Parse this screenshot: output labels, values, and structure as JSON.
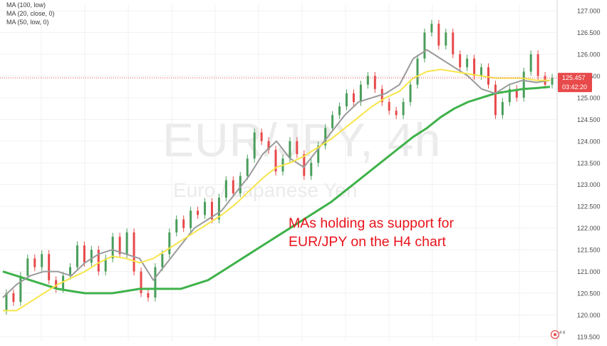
{
  "watermark": {
    "symbol": "EUR/JPY, 4h",
    "description": "Euro / Japanese Yen"
  },
  "indicators": [
    {
      "label": "MA (100, low)"
    },
    {
      "label": "MA (20, close, 0)"
    },
    {
      "label": "MA (50, low, 0)"
    }
  ],
  "annotation": {
    "line1": "MAs holding as support for",
    "line2": "EUR/JPY on the H4 chart"
  },
  "price_label": {
    "value": "125.457",
    "countdown": "03:42:20"
  },
  "corner_icon": {
    "name": "notification-bell-icon"
  },
  "colors": {
    "up_candle": "#e8494a",
    "down_candle": "#4a9e5c",
    "ma20": "#9a9a9a",
    "ma50": "#f7e54a",
    "ma100": "#3fb24a",
    "annotation": "#e8141c",
    "price_badge": "#e8494a"
  },
  "chart_data": {
    "type": "line",
    "yaxis_ticks": [
      "127.000",
      "126.500",
      "126.000",
      "125.500",
      "125.000",
      "124.500",
      "124.000",
      "123.500",
      "123.000",
      "122.500",
      "122.000",
      "121.500",
      "121.000",
      "120.500",
      "120.000",
      "119.500"
    ],
    "ylim": [
      119.4,
      127.15
    ],
    "series": [
      {
        "name": "MA (100, low)",
        "values": [
          121.0,
          120.9,
          120.8,
          120.7,
          120.6,
          120.55,
          120.5,
          120.5,
          120.5,
          120.55,
          120.6,
          120.6,
          120.6,
          120.6,
          120.7,
          120.8,
          121.0,
          121.2,
          121.4,
          121.6,
          121.8,
          122.0,
          122.2,
          122.4,
          122.6,
          122.85,
          123.1,
          123.35,
          123.6,
          123.85,
          124.1,
          124.3,
          124.55,
          124.75,
          124.9,
          125.0,
          125.1,
          125.15,
          125.2,
          125.22,
          125.25
        ]
      },
      {
        "name": "MA (20, close, 0)",
        "values": [
          120.4,
          120.7,
          120.9,
          121.0,
          121.0,
          120.9,
          121.2,
          121.4,
          121.5,
          121.4,
          121.3,
          120.8,
          121.2,
          121.6,
          122.0,
          122.2,
          122.4,
          122.8,
          123.2,
          123.7,
          124.0,
          123.6,
          123.4,
          123.8,
          124.2,
          124.6,
          124.9,
          125.0,
          125.1,
          125.3,
          125.9,
          126.1,
          125.9,
          125.7,
          125.5,
          125.2,
          125.1,
          125.3,
          125.4,
          125.35,
          125.4
        ]
      },
      {
        "name": "MA (50, low, 0)",
        "values": [
          120.1,
          120.1,
          120.3,
          120.5,
          120.7,
          120.85,
          121.0,
          121.2,
          121.35,
          121.3,
          121.2,
          121.3,
          121.5,
          121.7,
          121.9,
          122.1,
          122.3,
          122.55,
          122.85,
          123.15,
          123.4,
          123.5,
          123.65,
          123.85,
          124.05,
          124.3,
          124.55,
          124.8,
          125.0,
          125.15,
          125.45,
          125.6,
          125.65,
          125.6,
          125.55,
          125.5,
          125.45,
          125.45,
          125.45,
          125.4,
          125.4
        ]
      }
    ],
    "candles": [
      [
        120.1,
        120.5
      ],
      [
        120.5,
        120.3
      ],
      [
        120.3,
        120.9
      ],
      [
        120.9,
        121.3
      ],
      [
        121.3,
        121.1
      ],
      [
        121.1,
        121.4
      ],
      [
        121.4,
        120.8
      ],
      [
        120.8,
        120.6
      ],
      [
        120.6,
        120.9
      ],
      [
        120.9,
        121.1
      ],
      [
        121.1,
        121.6
      ],
      [
        121.6,
        121.2
      ],
      [
        121.2,
        121.5
      ],
      [
        121.5,
        121.0
      ],
      [
        121.0,
        121.3
      ],
      [
        121.3,
        121.8
      ],
      [
        121.8,
        121.4
      ],
      [
        121.4,
        121.9
      ],
      [
        121.9,
        121.0
      ],
      [
        121.0,
        120.5
      ],
      [
        120.5,
        120.4
      ],
      [
        120.4,
        121.1
      ],
      [
        121.1,
        121.4
      ],
      [
        121.4,
        121.9
      ],
      [
        121.9,
        122.2
      ],
      [
        122.2,
        122.0
      ],
      [
        122.0,
        122.4
      ],
      [
        122.4,
        122.3
      ],
      [
        122.3,
        122.6
      ],
      [
        122.6,
        122.2
      ],
      [
        122.2,
        122.7
      ],
      [
        122.7,
        123.1
      ],
      [
        123.1,
        122.8
      ],
      [
        122.8,
        123.2
      ],
      [
        123.2,
        123.6
      ],
      [
        123.6,
        124.2
      ],
      [
        124.2,
        124.0
      ],
      [
        124.0,
        123.8
      ],
      [
        123.8,
        123.3
      ],
      [
        123.3,
        123.6
      ],
      [
        123.6,
        124.0
      ],
      [
        124.0,
        123.7
      ],
      [
        123.7,
        123.2
      ],
      [
        123.2,
        123.5
      ],
      [
        123.5,
        123.9
      ],
      [
        123.9,
        124.3
      ],
      [
        124.3,
        124.6
      ],
      [
        124.6,
        124.8
      ],
      [
        124.8,
        125.1
      ],
      [
        125.1,
        124.9
      ],
      [
        124.9,
        125.3
      ],
      [
        125.3,
        125.5
      ],
      [
        125.5,
        125.2
      ],
      [
        125.2,
        124.9
      ],
      [
        124.9,
        124.7
      ],
      [
        124.7,
        124.6
      ],
      [
        124.6,
        124.9
      ],
      [
        124.9,
        125.3
      ],
      [
        125.3,
        125.9
      ],
      [
        125.9,
        126.5
      ],
      [
        126.5,
        126.7
      ],
      [
        126.7,
        126.2
      ],
      [
        126.2,
        126.5
      ],
      [
        126.5,
        126.0
      ],
      [
        126.0,
        125.7
      ],
      [
        125.7,
        125.9
      ],
      [
        125.9,
        125.5
      ],
      [
        125.5,
        125.7
      ],
      [
        125.7,
        125.3
      ],
      [
        125.3,
        124.6
      ],
      [
        124.6,
        124.9
      ],
      [
        124.9,
        125.2
      ],
      [
        125.2,
        125.0
      ],
      [
        125.0,
        125.6
      ],
      [
        125.6,
        126.0
      ],
      [
        126.0,
        125.5
      ],
      [
        125.5,
        125.3
      ],
      [
        125.3,
        125.46
      ]
    ]
  }
}
